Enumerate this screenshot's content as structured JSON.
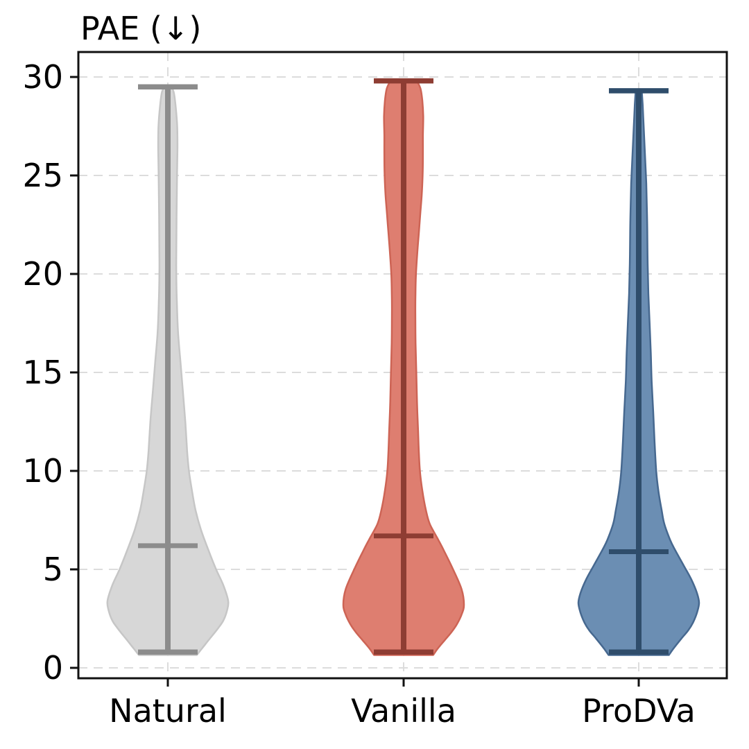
{
  "chart_data": {
    "type": "violin",
    "title": "PAE (↓)",
    "xlabel": "",
    "ylabel": "",
    "ylim": [
      -0.5,
      31.3
    ],
    "y_ticks": [
      0,
      5,
      10,
      15,
      20,
      25,
      30
    ],
    "grid": {
      "horizontal": true,
      "vertical": true,
      "style": "dashed",
      "color": "#dcdcdc"
    },
    "legend": "none",
    "categories": [
      "Natural",
      "Vanilla",
      "ProDVa"
    ],
    "series": [
      {
        "name": "Natural",
        "colors": {
          "fill": "#d7d7d7",
          "edge": "#c6c6c6",
          "line": "#8c8c8c"
        },
        "stats": {
          "min": 0.8,
          "mean": 6.2,
          "max": 29.5
        },
        "profile": [
          [
            29.5,
            0.06
          ],
          [
            29.2,
            0.1
          ],
          [
            28.5,
            0.13
          ],
          [
            27.5,
            0.155
          ],
          [
            26.5,
            0.16
          ],
          [
            25.5,
            0.155
          ],
          [
            24.5,
            0.15
          ],
          [
            23.0,
            0.145
          ],
          [
            21.0,
            0.14
          ],
          [
            20.0,
            0.14
          ],
          [
            18.5,
            0.15
          ],
          [
            17.0,
            0.17
          ],
          [
            15.5,
            0.21
          ],
          [
            14.0,
            0.25
          ],
          [
            12.5,
            0.29
          ],
          [
            11.0,
            0.32
          ],
          [
            10.0,
            0.35
          ],
          [
            9.0,
            0.4
          ],
          [
            8.0,
            0.46
          ],
          [
            7.0,
            0.55
          ],
          [
            6.0,
            0.67
          ],
          [
            5.0,
            0.8
          ],
          [
            4.2,
            0.92
          ],
          [
            3.4,
            1.0
          ],
          [
            2.9,
            0.98
          ],
          [
            2.4,
            0.92
          ],
          [
            2.0,
            0.83
          ],
          [
            1.5,
            0.7
          ],
          [
            1.0,
            0.57
          ],
          [
            0.65,
            0.48
          ]
        ]
      },
      {
        "name": "Vanilla",
        "colors": {
          "fill": "#de7e70",
          "edge": "#cd6455",
          "line": "#8e3d33"
        },
        "stats": {
          "min": 0.8,
          "mean": 6.7,
          "max": 29.8
        },
        "profile": [
          [
            29.8,
            0.22
          ],
          [
            29.4,
            0.28
          ],
          [
            28.8,
            0.31
          ],
          [
            28.0,
            0.325
          ],
          [
            27.0,
            0.32
          ],
          [
            26.0,
            0.32
          ],
          [
            25.0,
            0.315
          ],
          [
            24.0,
            0.3
          ],
          [
            23.0,
            0.275
          ],
          [
            22.0,
            0.25
          ],
          [
            21.0,
            0.225
          ],
          [
            20.0,
            0.205
          ],
          [
            19.0,
            0.196
          ],
          [
            18.0,
            0.194
          ],
          [
            16.5,
            0.198
          ],
          [
            15.0,
            0.21
          ],
          [
            13.5,
            0.222
          ],
          [
            12.0,
            0.24
          ],
          [
            11.0,
            0.252
          ],
          [
            10.0,
            0.27
          ],
          [
            9.0,
            0.31
          ],
          [
            8.0,
            0.37
          ],
          [
            7.3,
            0.435
          ],
          [
            6.5,
            0.575
          ],
          [
            6.0,
            0.66
          ],
          [
            5.0,
            0.82
          ],
          [
            4.0,
            0.96
          ],
          [
            3.2,
            1.0
          ],
          [
            2.7,
            0.96
          ],
          [
            2.2,
            0.88
          ],
          [
            1.8,
            0.79
          ],
          [
            1.4,
            0.68
          ],
          [
            1.0,
            0.57
          ],
          [
            0.65,
            0.49
          ]
        ]
      },
      {
        "name": "ProDVa",
        "colors": {
          "fill": "#6b8eb3",
          "edge": "#46688f",
          "line": "#2f4d6b"
        },
        "stats": {
          "min": 0.8,
          "mean": 5.9,
          "max": 29.3
        },
        "profile": [
          [
            29.3,
            0.05
          ],
          [
            28.6,
            0.065
          ],
          [
            27.6,
            0.08
          ],
          [
            26.6,
            0.095
          ],
          [
            25.6,
            0.11
          ],
          [
            24.6,
            0.125
          ],
          [
            23.4,
            0.135
          ],
          [
            22.0,
            0.143
          ],
          [
            20.5,
            0.148
          ],
          [
            19.0,
            0.16
          ],
          [
            17.5,
            0.18
          ],
          [
            16.0,
            0.2
          ],
          [
            14.5,
            0.215
          ],
          [
            13.0,
            0.24
          ],
          [
            11.5,
            0.262
          ],
          [
            10.0,
            0.29
          ],
          [
            9.0,
            0.325
          ],
          [
            8.0,
            0.38
          ],
          [
            7.3,
            0.425
          ],
          [
            6.5,
            0.52
          ],
          [
            6.0,
            0.6
          ],
          [
            5.2,
            0.745
          ],
          [
            4.5,
            0.87
          ],
          [
            3.8,
            0.965
          ],
          [
            3.3,
            1.0
          ],
          [
            2.8,
            0.965
          ],
          [
            2.3,
            0.9
          ],
          [
            1.9,
            0.82
          ],
          [
            1.5,
            0.71
          ],
          [
            1.0,
            0.58
          ],
          [
            0.65,
            0.5
          ]
        ]
      }
    ]
  }
}
